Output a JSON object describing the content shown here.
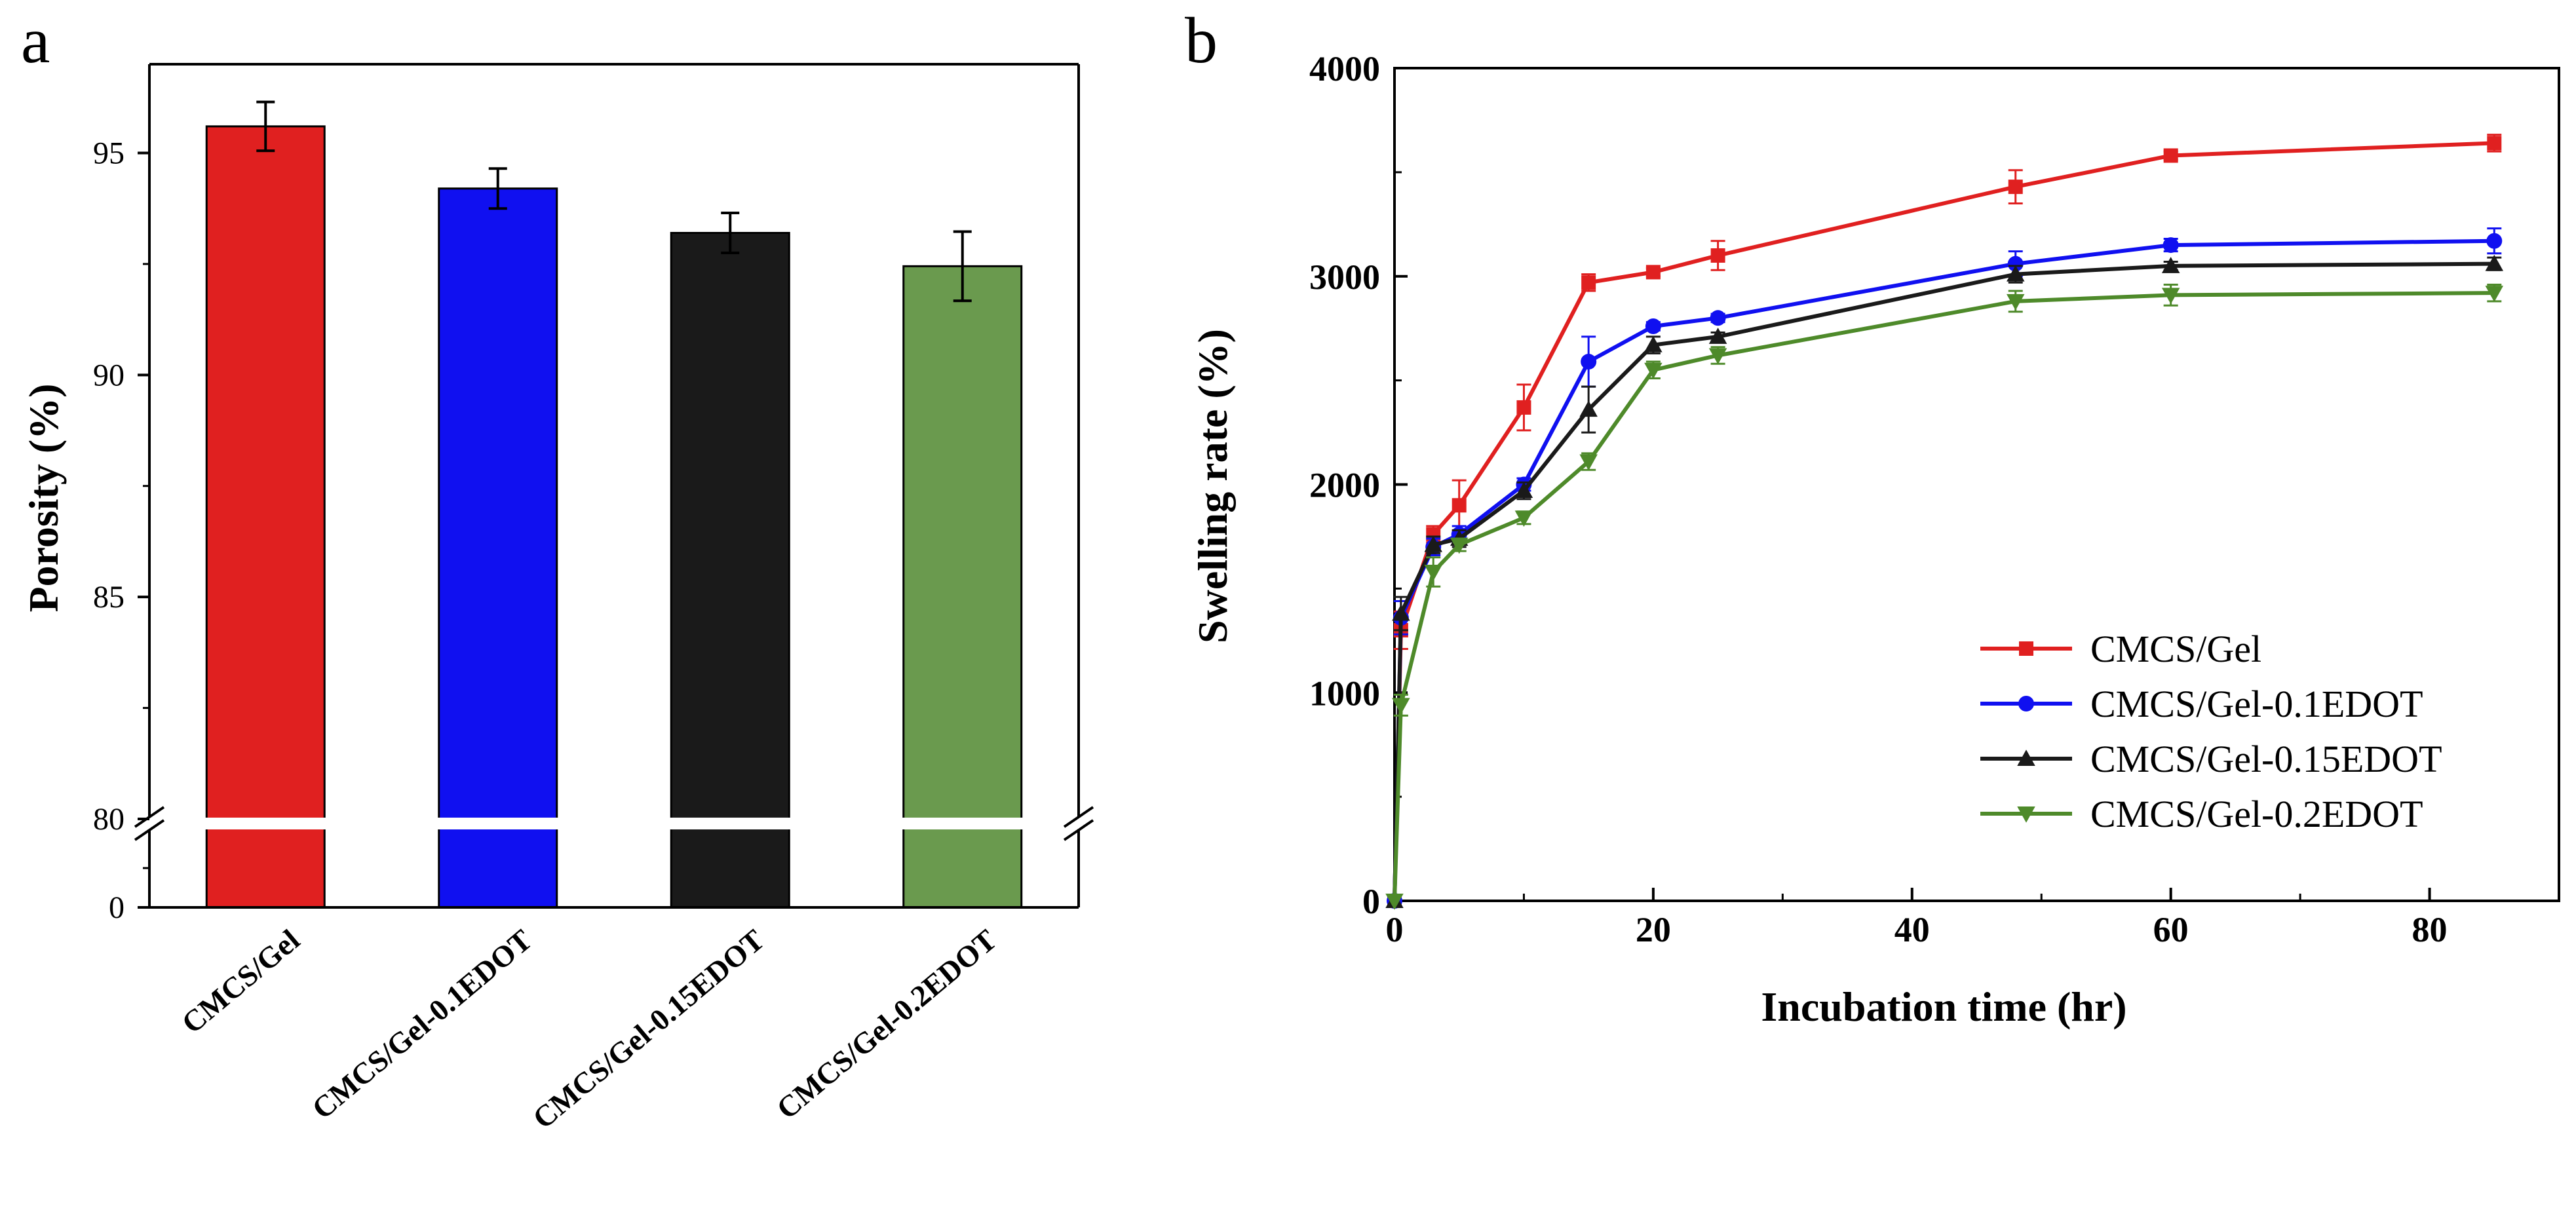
{
  "panel_a": {
    "letter": "a"
  },
  "panel_b": {
    "letter": "b"
  },
  "chart_data": [
    {
      "type": "bar",
      "title": "",
      "xlabel": "",
      "ylabel": "Porosity (%)",
      "ylim": [
        80,
        97
      ],
      "axis_break": {
        "lower_tick": 0,
        "break_at": 80
      },
      "yticks": [
        80,
        85,
        90,
        95
      ],
      "categories": [
        "CMCS/Gel",
        "CMCS/Gel-0.1EDOT",
        "CMCS/Gel-0.15EDOT",
        "CMCS/Gel-0.2EDOT"
      ],
      "values": [
        95.6,
        94.2,
        93.2,
        92.45
      ],
      "errors": [
        0.55,
        0.45,
        0.45,
        0.78
      ],
      "colors": [
        "#e02020",
        "#1010f0",
        "#1a1a1a",
        "#6a9a4e"
      ]
    },
    {
      "type": "line",
      "title": "",
      "xlabel": "Incubation time (hr)",
      "ylabel": "Swelling rate (%)",
      "xlim": [
        0,
        90
      ],
      "ylim": [
        0,
        4000
      ],
      "xticks": [
        0,
        20,
        40,
        60,
        80
      ],
      "yticks": [
        0,
        1000,
        2000,
        3000,
        4000
      ],
      "legend_position": "bottom-right",
      "x": [
        0,
        0.5,
        3,
        5,
        10,
        15,
        20,
        25,
        48,
        60,
        85
      ],
      "series": [
        {
          "name": "CMCS/Gel",
          "color": "#e02020",
          "marker": "square",
          "values": [
            0,
            1300,
            1760,
            1900,
            2370,
            2970,
            3020,
            3100,
            3430,
            3580,
            3640
          ],
          "errors": [
            0,
            90,
            40,
            120,
            110,
            40,
            20,
            70,
            80,
            20,
            40
          ]
        },
        {
          "name": "CMCS/Gel-0.1EDOT",
          "color": "#1010f0",
          "marker": "circle",
          "values": [
            0,
            1360,
            1700,
            1760,
            2000,
            2590,
            2760,
            2800,
            3060,
            3150,
            3170
          ],
          "errors": [
            0,
            80,
            40,
            40,
            30,
            120,
            20,
            20,
            60,
            30,
            60
          ]
        },
        {
          "name": "CMCS/Gel-0.15EDOT",
          "color": "#1a1a1a",
          "marker": "triangle-up",
          "values": [
            0,
            1380,
            1710,
            1740,
            1970,
            2360,
            2670,
            2710,
            3010,
            3050,
            3060
          ],
          "errors": [
            0,
            80,
            40,
            40,
            40,
            110,
            40,
            20,
            40,
            20,
            30
          ]
        },
        {
          "name": "CMCS/Gel-0.2EDOT",
          "color": "#4e8a2a",
          "marker": "triangle-down",
          "values": [
            0,
            940,
            1580,
            1710,
            1840,
            2110,
            2550,
            2620,
            2880,
            2910,
            2920
          ],
          "errors": [
            0,
            50,
            70,
            30,
            30,
            40,
            40,
            40,
            50,
            50,
            40
          ]
        }
      ]
    }
  ]
}
